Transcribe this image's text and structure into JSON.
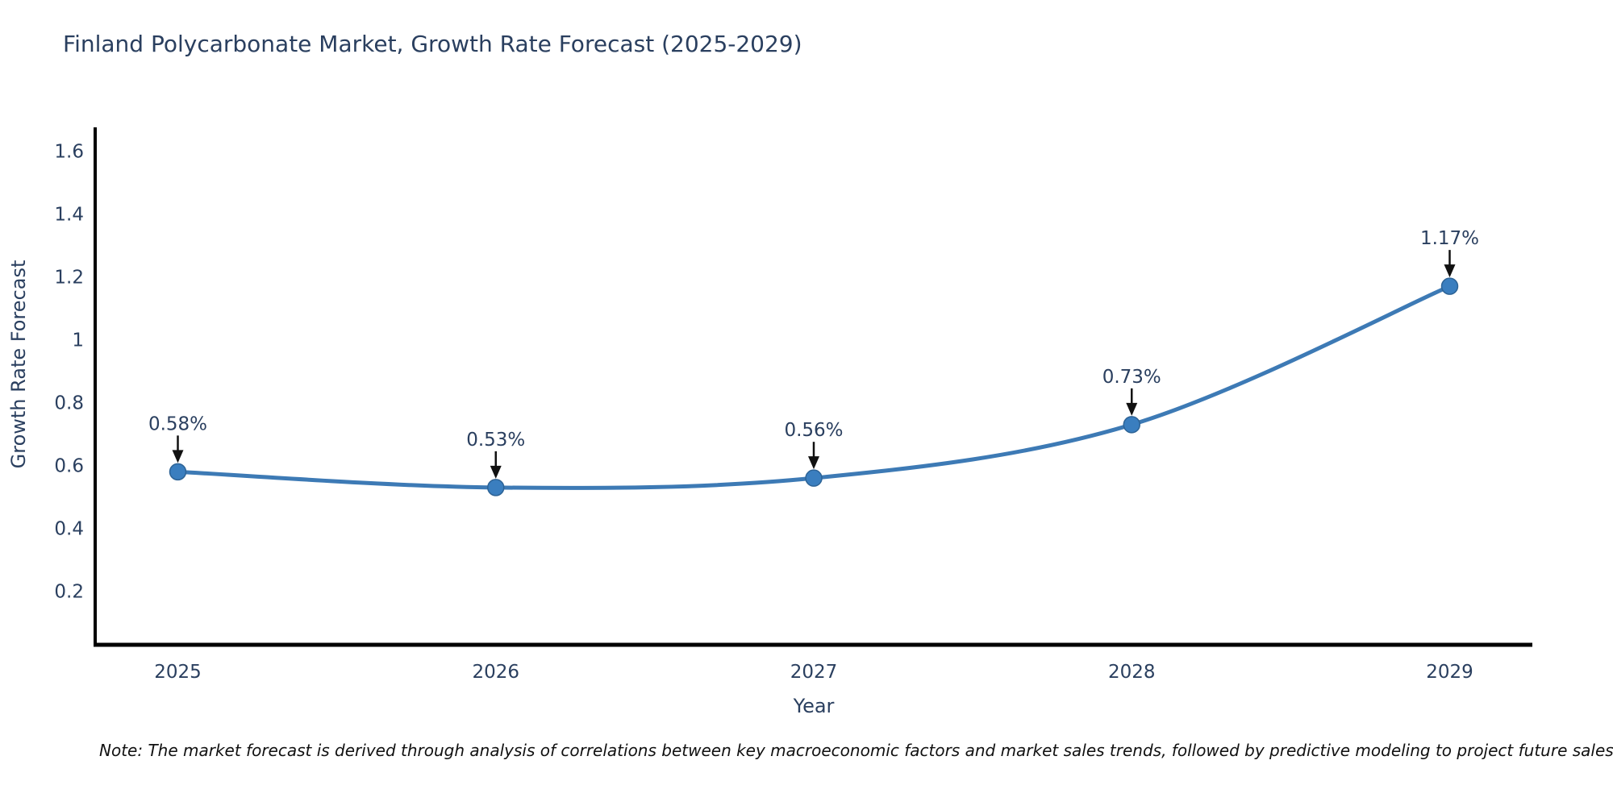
{
  "title": "Finland Polycarbonate Market, Growth Rate Forecast (2025-2029)",
  "note": "Note: The market forecast is derived through analysis of correlations between key macroeconomic factors and market sales trends, followed by predictive modeling to project future sales",
  "chart_data": {
    "type": "line",
    "title": "Finland Polycarbonate Market, Growth Rate Forecast (2025-2029)",
    "xlabel": "Year",
    "ylabel": "Growth Rate Forecast",
    "categories": [
      "2025",
      "2026",
      "2027",
      "2028",
      "2029"
    ],
    "x": [
      2025,
      2026,
      2027,
      2028,
      2029
    ],
    "series": [
      {
        "name": "Growth Rate Forecast",
        "values": [
          0.58,
          0.53,
          0.56,
          0.73,
          1.17
        ],
        "point_labels": [
          "0.58%",
          "0.53%",
          "0.56%",
          "0.73%",
          "1.17%"
        ]
      }
    ],
    "yticks": [
      0.2,
      0.4,
      0.6,
      0.8,
      1,
      1.2,
      1.4,
      1.6
    ],
    "yticklabels": [
      "0.2",
      "0.4",
      "0.6",
      "0.8",
      "1",
      "1.2",
      "1.4",
      "1.6"
    ],
    "xlim": [
      2024.74,
      2029.26
    ],
    "ylim": [
      0.03,
      1.67
    ],
    "grid": false,
    "legend": "none",
    "line_shape": "spline",
    "annotation_arrows": true,
    "colors": {
      "line": "#3d7ab5",
      "marker": "#3a7ebf",
      "marker_edge": "#2d6396",
      "arrow": "#111111",
      "title": "#2a3f5f",
      "tick": "#2a3f5f",
      "axis": "#000000",
      "note": "#111111",
      "background": "#ffffff"
    }
  }
}
